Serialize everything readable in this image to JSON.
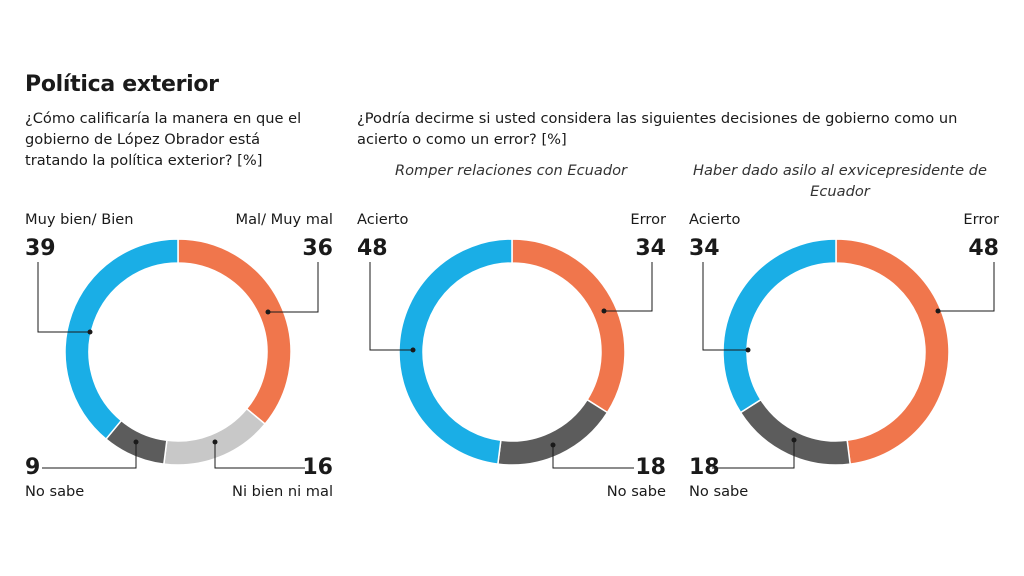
{
  "page": {
    "title": "Política exterior",
    "question_1": "¿Cómo calificaría la manera en que el gobierno de López Obrador está tratando la política exterior? [%]",
    "question_2": "¿Podría decirme si usted considera las siguientes decisiones de gobierno como un acierto o como un error? [%]",
    "subtitle_2": "Romper relaciones con Ecuador",
    "subtitle_3": "Haber dado asilo al exvicepresidente de Ecuador"
  },
  "colors": {
    "blue": "#1aaee6",
    "orange": "#f0764c",
    "dark_gray": "#5c5c5c",
    "light_gray": "#c8c8c8",
    "leader": "#1a1a1a"
  },
  "chart_data": [
    {
      "type": "pie",
      "title": "¿Cómo calificaría la manera en que el gobierno de López Obrador está tratando la política exterior? [%]",
      "slices": [
        {
          "label": "Mal/ Muy mal",
          "value": 36,
          "color": "#f0764c"
        },
        {
          "label": "Ni bien ni mal",
          "value": 16,
          "color": "#c8c8c8"
        },
        {
          "label": "No sabe",
          "value": 9,
          "color": "#5c5c5c"
        },
        {
          "label": "Muy bien/ Bien",
          "value": 39,
          "color": "#1aaee6"
        }
      ]
    },
    {
      "type": "pie",
      "title": "Romper relaciones con Ecuador",
      "slices": [
        {
          "label": "Error",
          "value": 34,
          "color": "#f0764c"
        },
        {
          "label": "No sabe",
          "value": 18,
          "color": "#5c5c5c"
        },
        {
          "label": "Acierto",
          "value": 48,
          "color": "#1aaee6"
        }
      ]
    },
    {
      "type": "pie",
      "title": "Haber dado asilo al exvicepresidente de Ecuador",
      "slices": [
        {
          "label": "Error",
          "value": 48,
          "color": "#f0764c"
        },
        {
          "label": "No sabe",
          "value": 18,
          "color": "#5c5c5c"
        },
        {
          "label": "Acierto",
          "value": 34,
          "color": "#1aaee6"
        }
      ]
    }
  ]
}
